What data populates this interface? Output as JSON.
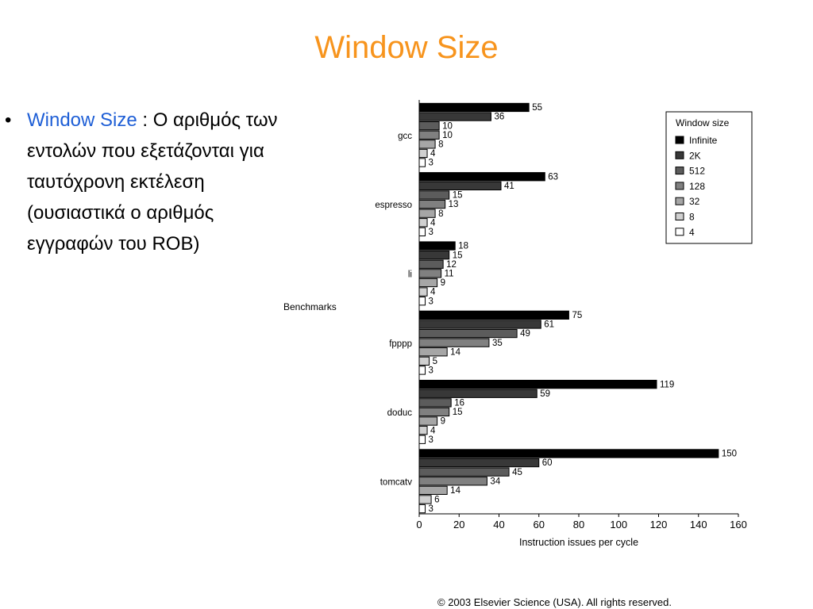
{
  "slide": {
    "title": "Window Size",
    "bullet": {
      "symbol": "•",
      "term": "Window Size",
      "text": " : Ο αριθμός των εντολών που εξετάζονται για ταυτόχρονη εκτέλεση (ουσιαστικά ο αριθμός εγγραφών του ROB)"
    },
    "copyright": "© 2003 Elsevier Science (USA). All rights reserved."
  },
  "chart_data": {
    "type": "bar",
    "orientation": "horizontal",
    "title": "",
    "xlabel": "Instruction issues per cycle",
    "ylabel": "Benchmarks",
    "xlim": [
      0,
      160
    ],
    "xticks": [
      0,
      20,
      40,
      60,
      80,
      100,
      120,
      140,
      160
    ],
    "grid": false,
    "legend_title": "Window size",
    "legend_position": "right",
    "categories": [
      "gcc",
      "espresso",
      "li",
      "fpppp",
      "doduc",
      "tomcatv"
    ],
    "series": [
      {
        "name": "Infinite",
        "color": "#000000",
        "values": [
          55,
          63,
          18,
          75,
          119,
          150
        ]
      },
      {
        "name": "2K",
        "color": "#383838",
        "values": [
          36,
          41,
          15,
          61,
          59,
          60
        ]
      },
      {
        "name": "512",
        "color": "#5c5c5c",
        "values": [
          10,
          15,
          12,
          49,
          16,
          45
        ]
      },
      {
        "name": "128",
        "color": "#808080",
        "values": [
          10,
          13,
          11,
          35,
          15,
          34
        ]
      },
      {
        "name": "32",
        "color": "#a6a6a6",
        "values": [
          8,
          8,
          9,
          14,
          9,
          14
        ]
      },
      {
        "name": "8",
        "color": "#d0d0d0",
        "values": [
          4,
          4,
          4,
          5,
          4,
          6
        ]
      },
      {
        "name": "4",
        "color": "#ffffff",
        "values": [
          3,
          3,
          3,
          3,
          3,
          3
        ]
      }
    ]
  }
}
